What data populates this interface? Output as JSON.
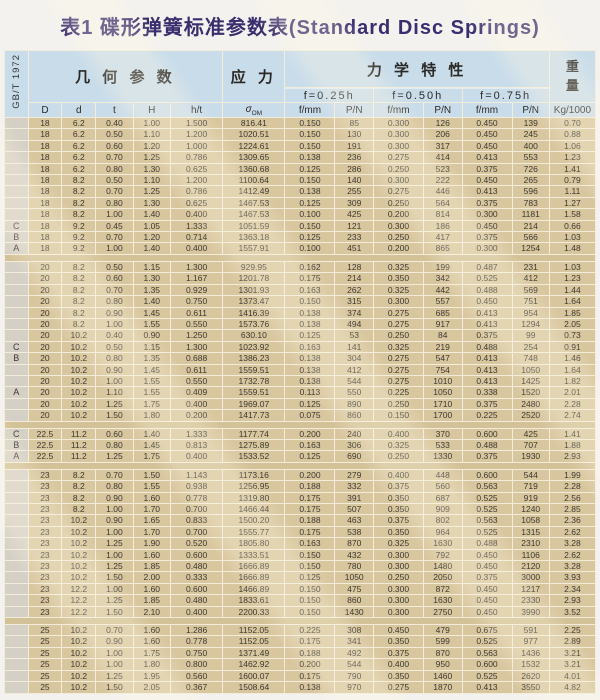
{
  "title": "表1 碟形弹簧标准参数表(Standard Disc Springs)",
  "header": {
    "standard": "GB/T 1972",
    "groups": {
      "geometry": "几 何 参 数",
      "stress": "应 力",
      "mechanical": "力 学 特 性",
      "weight": [
        "重",
        "量"
      ]
    },
    "deflection_levels": [
      "f=0.25h",
      "f=0.50h",
      "f=0.75h"
    ],
    "columns": {
      "D": "D",
      "d": "d",
      "t": "t",
      "H": "H",
      "ht": "h/t",
      "sigma_base": "σ",
      "sigma_sub": "OM",
      "f": "f/mm",
      "p": "P/N",
      "weight_unit": "Kg/1000"
    }
  },
  "table": {
    "groups": [
      {
        "rows": [
          [
            "",
            "18",
            "6.2",
            "0.40",
            "1.00",
            "1.500",
            "816.41",
            "0.150",
            "85",
            "0.300",
            "126",
            "0.450",
            "139",
            "0.70"
          ],
          [
            "",
            "18",
            "6.2",
            "0.50",
            "1.10",
            "1.200",
            "1020.51",
            "0.150",
            "130",
            "0.300",
            "206",
            "0.450",
            "245",
            "0.88"
          ],
          [
            "",
            "18",
            "6.2",
            "0.60",
            "1.20",
            "1.000",
            "1224.61",
            "0.150",
            "191",
            "0.300",
            "317",
            "0.450",
            "400",
            "1.06"
          ],
          [
            "",
            "18",
            "6.2",
            "0.70",
            "1.25",
            "0.786",
            "1309.65",
            "0.138",
            "236",
            "0.275",
            "414",
            "0.413",
            "553",
            "1.23"
          ],
          [
            "",
            "18",
            "6.2",
            "0.80",
            "1.30",
            "0.625",
            "1360.68",
            "0.125",
            "286",
            "0.250",
            "523",
            "0.375",
            "726",
            "1.41"
          ],
          [
            "",
            "18",
            "8.2",
            "0.50",
            "1.10",
            "1.200",
            "1100.64",
            "0.150",
            "140",
            "0.300",
            "222",
            "0.450",
            "265",
            "0.79"
          ],
          [
            "",
            "18",
            "8.2",
            "0.70",
            "1.25",
            "0.786",
            "1412.49",
            "0.138",
            "255",
            "0.275",
            "446",
            "0.413",
            "596",
            "1.11"
          ],
          [
            "",
            "18",
            "8.2",
            "0.80",
            "1.30",
            "0.625",
            "1467.53",
            "0.125",
            "309",
            "0.250",
            "564",
            "0.375",
            "783",
            "1.27"
          ],
          [
            "",
            "18",
            "8.2",
            "1.00",
            "1.40",
            "0.400",
            "1467.53",
            "0.100",
            "425",
            "0.200",
            "814",
            "0.300",
            "1181",
            "1.58"
          ],
          [
            "C",
            "18",
            "9.2",
            "0.45",
            "1.05",
            "1.333",
            "1051.59",
            "0.150",
            "121",
            "0.300",
            "186",
            "0.450",
            "214",
            "0.66"
          ],
          [
            "B",
            "18",
            "9.2",
            "0.70",
            "1.20",
            "0.714",
            "1363.18",
            "0.125",
            "233",
            "0.250",
            "417",
            "0.375",
            "566",
            "1.03"
          ],
          [
            "A",
            "18",
            "9.2",
            "1.00",
            "1.40",
            "0.400",
            "1557.91",
            "0.100",
            "451",
            "0.200",
            "865",
            "0.300",
            "1254",
            "1.48"
          ]
        ]
      },
      {
        "rows": [
          [
            "",
            "20",
            "8.2",
            "0.50",
            "1.15",
            "1.300",
            "929.95",
            "0.162",
            "128",
            "0.325",
            "199",
            "0.487",
            "231",
            "1.03"
          ],
          [
            "",
            "20",
            "8.2",
            "0.60",
            "1.30",
            "1.167",
            "1201.78",
            "0.175",
            "214",
            "0.350",
            "342",
            "0.525",
            "412",
            "1.23"
          ],
          [
            "",
            "20",
            "8.2",
            "0.70",
            "1.35",
            "0.929",
            "1301.93",
            "0.163",
            "262",
            "0.325",
            "442",
            "0.488",
            "569",
            "1.44"
          ],
          [
            "",
            "20",
            "8.2",
            "0.80",
            "1.40",
            "0.750",
            "1373.47",
            "0.150",
            "315",
            "0.300",
            "557",
            "0.450",
            "751",
            "1.64"
          ],
          [
            "",
            "20",
            "8.2",
            "0.90",
            "1.45",
            "0.611",
            "1416.39",
            "0.138",
            "374",
            "0.275",
            "685",
            "0.413",
            "954",
            "1.85"
          ],
          [
            "",
            "20",
            "8.2",
            "1.00",
            "1.55",
            "0.550",
            "1573.76",
            "0.138",
            "494",
            "0.275",
            "917",
            "0.413",
            "1294",
            "2.05"
          ],
          [
            "",
            "20",
            "10.2",
            "0.40",
            "0.90",
            "1.250",
            "630.10",
            "0.125",
            "53",
            "0.250",
            "84",
            "0.375",
            "99",
            "0.73"
          ],
          [
            "C",
            "20",
            "10.2",
            "0.50",
            "1.15",
            "1.300",
            "1023.92",
            "0.163",
            "141",
            "0.325",
            "219",
            "0.488",
            "254",
            "0.91"
          ],
          [
            "B",
            "20",
            "10.2",
            "0.80",
            "1.35",
            "0.688",
            "1386.23",
            "0.138",
            "304",
            "0.275",
            "547",
            "0.413",
            "748",
            "1.46"
          ],
          [
            "",
            "20",
            "10.2",
            "0.90",
            "1.45",
            "0.611",
            "1559.51",
            "0.138",
            "412",
            "0.275",
            "754",
            "0.413",
            "1050",
            "1.64"
          ],
          [
            "",
            "20",
            "10.2",
            "1.00",
            "1.55",
            "0.550",
            "1732.78",
            "0.138",
            "544",
            "0.275",
            "1010",
            "0.413",
            "1425",
            "1.82"
          ],
          [
            "A",
            "20",
            "10.2",
            "1.10",
            "1.55",
            "0.409",
            "1559.51",
            "0.113",
            "550",
            "0.225",
            "1050",
            "0.338",
            "1520",
            "2.01"
          ],
          [
            "",
            "20",
            "10.2",
            "1.25",
            "1.75",
            "0.400",
            "1969.07",
            "0.125",
            "890",
            "0.250",
            "1710",
            "0.375",
            "2480",
            "2.28"
          ],
          [
            "",
            "20",
            "10.2",
            "1.50",
            "1.80",
            "0.200",
            "1417.73",
            "0.075",
            "860",
            "0.150",
            "1700",
            "0.225",
            "2520",
            "2.74"
          ]
        ]
      },
      {
        "rows": [
          [
            "C",
            "22.5",
            "11.2",
            "0.60",
            "1.40",
            "1.333",
            "1177.74",
            "0.200",
            "240",
            "0.400",
            "370",
            "0.600",
            "425",
            "1.41"
          ],
          [
            "B",
            "22.5",
            "11.2",
            "0.80",
            "1.45",
            "0.813",
            "1275.89",
            "0.163",
            "306",
            "0.325",
            "533",
            "0.488",
            "707",
            "1.88"
          ],
          [
            "A",
            "22.5",
            "11.2",
            "1.25",
            "1.75",
            "0.400",
            "1533.52",
            "0.125",
            "690",
            "0.250",
            "1330",
            "0.375",
            "1930",
            "2.93"
          ]
        ]
      },
      {
        "rows": [
          [
            "",
            "23",
            "8.2",
            "0.70",
            "1.50",
            "1.143",
            "1173.16",
            "0.200",
            "279",
            "0.400",
            "448",
            "0.600",
            "544",
            "1.99"
          ],
          [
            "",
            "23",
            "8.2",
            "0.80",
            "1.55",
            "0.938",
            "1256.95",
            "0.188",
            "332",
            "0.375",
            "560",
            "0.563",
            "719",
            "2.28"
          ],
          [
            "",
            "23",
            "8.2",
            "0.90",
            "1.60",
            "0.778",
            "1319.80",
            "0.175",
            "391",
            "0.350",
            "687",
            "0.525",
            "919",
            "2.56"
          ],
          [
            "",
            "23",
            "8.2",
            "1.00",
            "1.70",
            "0.700",
            "1466.44",
            "0.175",
            "507",
            "0.350",
            "909",
            "0.525",
            "1240",
            "2.85"
          ],
          [
            "",
            "23",
            "10.2",
            "0.90",
            "1.65",
            "0.833",
            "1500.20",
            "0.188",
            "463",
            "0.375",
            "802",
            "0.563",
            "1058",
            "2.36"
          ],
          [
            "",
            "23",
            "10.2",
            "1.00",
            "1.70",
            "0.700",
            "1555.77",
            "0.175",
            "538",
            "0.350",
            "964",
            "0.525",
            "1315",
            "2.62"
          ],
          [
            "",
            "23",
            "10.2",
            "1.25",
            "1.90",
            "0.520",
            "1805.80",
            "0.163",
            "870",
            "0.325",
            "1630",
            "0.488",
            "2310",
            "3.28"
          ],
          [
            "",
            "23",
            "10.2",
            "1.00",
            "1.60",
            "0.600",
            "1333.51",
            "0.150",
            "432",
            "0.300",
            "792",
            "0.450",
            "1106",
            "2.62"
          ],
          [
            "",
            "23",
            "10.2",
            "1.25",
            "1.85",
            "0.480",
            "1666.89",
            "0.150",
            "780",
            "0.300",
            "1480",
            "0.450",
            "2120",
            "3.28"
          ],
          [
            "",
            "23",
            "10.2",
            "1.50",
            "2.00",
            "0.333",
            "1666.89",
            "0.125",
            "1050",
            "0.250",
            "2050",
            "0.375",
            "3000",
            "3.93"
          ],
          [
            "",
            "23",
            "12.2",
            "1.00",
            "1.60",
            "0.600",
            "1466.89",
            "0.150",
            "475",
            "0.300",
            "872",
            "0.450",
            "1217",
            "2.34"
          ],
          [
            "",
            "23",
            "12.2",
            "1.25",
            "1.85",
            "0.480",
            "1833.61",
            "0.150",
            "860",
            "0.300",
            "1630",
            "0.450",
            "2330",
            "2.93"
          ],
          [
            "",
            "23",
            "12.2",
            "1.50",
            "2.10",
            "0.400",
            "2200.33",
            "0.150",
            "1430",
            "0.300",
            "2750",
            "0.450",
            "3990",
            "3.52"
          ]
        ]
      },
      {
        "rows": [
          [
            "",
            "25",
            "10.2",
            "0.70",
            "1.60",
            "1.286",
            "1152.05",
            "0.225",
            "308",
            "0.450",
            "479",
            "0.675",
            "591",
            "2.25"
          ],
          [
            "",
            "25",
            "10.2",
            "0.90",
            "1.60",
            "0.778",
            "1152.05",
            "0.175",
            "341",
            "0.350",
            "599",
            "0.525",
            "977",
            "2.89"
          ],
          [
            "",
            "25",
            "10.2",
            "1.00",
            "1.75",
            "0.750",
            "1371.49",
            "0.188",
            "492",
            "0.375",
            "870",
            "0.563",
            "1436",
            "3.21"
          ],
          [
            "",
            "25",
            "10.2",
            "1.00",
            "1.80",
            "0.800",
            "1462.92",
            "0.200",
            "544",
            "0.400",
            "950",
            "0.600",
            "1532",
            "3.21"
          ],
          [
            "",
            "25",
            "10.2",
            "1.25",
            "1.95",
            "0.560",
            "1600.07",
            "0.175",
            "790",
            "0.350",
            "1460",
            "0.525",
            "2620",
            "4.01"
          ],
          [
            "",
            "25",
            "10.2",
            "1.50",
            "2.05",
            "0.367",
            "1508.64",
            "0.138",
            "970",
            "0.275",
            "1870",
            "0.413",
            "3550",
            "4.82"
          ]
        ]
      }
    ]
  },
  "colors": {
    "header_bg": "#c9dcea",
    "cell_bg": "#d8c69e",
    "letter_cell_bg": "#d5d0c5",
    "gap_bg": "#d3c197",
    "grid": "#f3ecda",
    "title_text": "#3a2e6e",
    "body_text": "#3c3830"
  }
}
